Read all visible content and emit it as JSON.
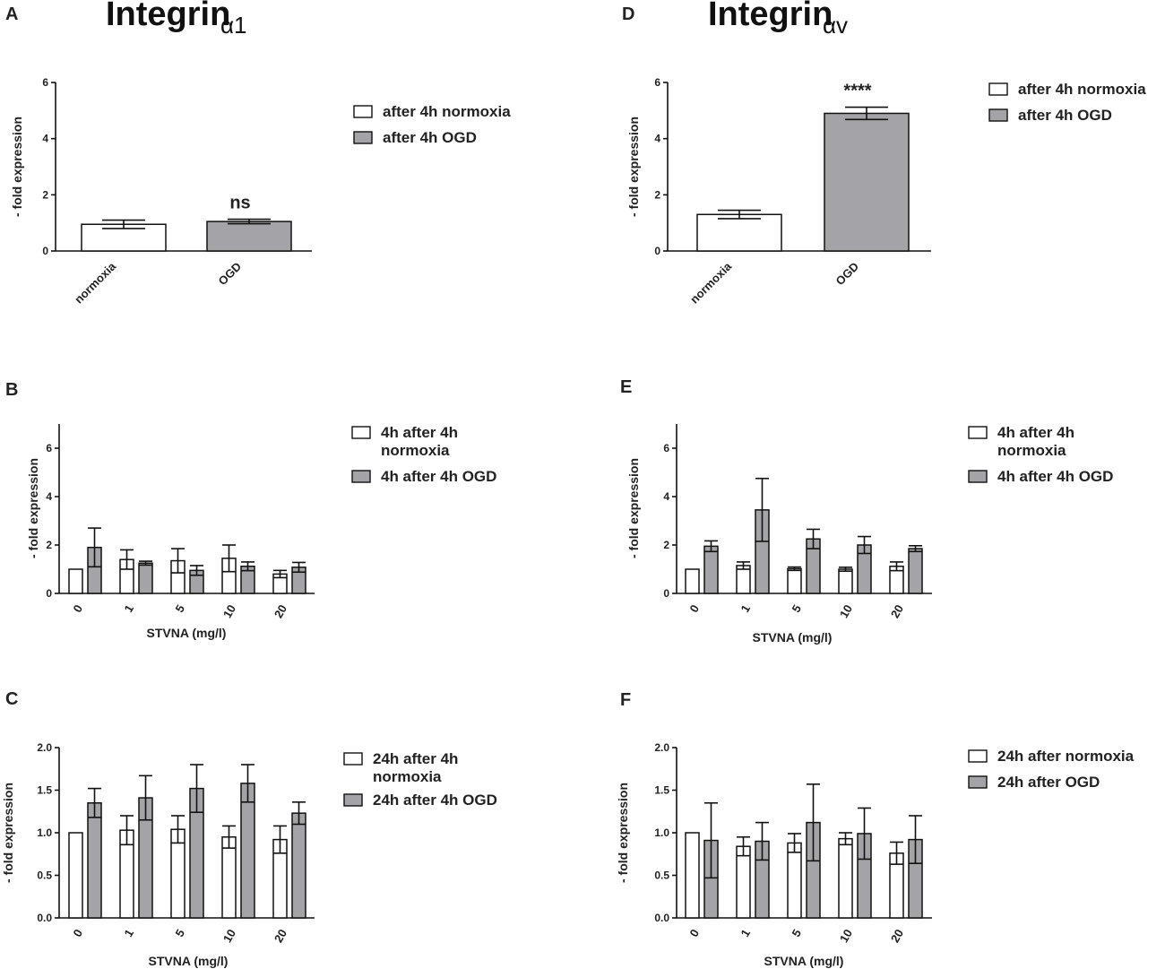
{
  "figure": {
    "title_left": {
      "main": "Integrin",
      "sub": "α1"
    },
    "title_right": {
      "main": "Integrin",
      "sub": "αv"
    }
  },
  "colors": {
    "white_bar": "#ffffff",
    "grey_bar": "#a4a4a8",
    "stroke": "#111111"
  },
  "chart_data": [
    {
      "id": "A",
      "panel_label": "A",
      "type": "bar",
      "ylabel": "- fold expression",
      "xlabel": "",
      "ylim": [
        0,
        6
      ],
      "yticks": [
        "0",
        "2",
        "4",
        "6"
      ],
      "ytick_values": [
        0,
        2,
        4,
        6
      ],
      "categories": [
        "normoxia",
        "OGD"
      ],
      "series": [
        {
          "name": "after 4h normoxia",
          "color": "#ffffff",
          "values": [
            0.95,
            null
          ],
          "errors": [
            0.15,
            null
          ]
        },
        {
          "name": "after 4h OGD",
          "color": "#a4a4a8",
          "values": [
            null,
            1.05
          ],
          "errors": [
            null,
            0.08
          ]
        }
      ],
      "annotation": "ns",
      "legend": [
        {
          "label": "after 4h normoxia",
          "color": "#ffffff"
        },
        {
          "label": "after 4h OGD",
          "color": "#a4a4a8"
        }
      ]
    },
    {
      "id": "D",
      "panel_label": "D",
      "type": "bar",
      "ylabel": "- fold expression",
      "xlabel": "",
      "ylim": [
        0,
        6
      ],
      "yticks": [
        "0",
        "2",
        "4",
        "6"
      ],
      "ytick_values": [
        0,
        2,
        4,
        6
      ],
      "categories": [
        "normoxia",
        "OGD"
      ],
      "series": [
        {
          "name": "after  4h normoxia",
          "color": "#ffffff",
          "values": [
            1.3,
            null
          ],
          "errors": [
            0.15,
            null
          ]
        },
        {
          "name": "after 4h OGD",
          "color": "#a4a4a8",
          "values": [
            null,
            4.9
          ],
          "errors": [
            null,
            0.22
          ]
        }
      ],
      "annotation": "****",
      "legend": [
        {
          "label": "after  4h normoxia",
          "color": "#ffffff"
        },
        {
          "label": "after 4h OGD",
          "color": "#a4a4a8"
        }
      ]
    },
    {
      "id": "B",
      "panel_label": "B",
      "type": "bar",
      "ylabel": "- fold expression",
      "xlabel": "STVNA (mg/l)",
      "ylim": [
        0,
        7
      ],
      "yticks": [
        "0",
        "2",
        "4",
        "6"
      ],
      "ytick_values": [
        0,
        2,
        4,
        6
      ],
      "categories": [
        "0",
        "1",
        "5",
        "10",
        "20"
      ],
      "series": [
        {
          "name": "4h after 4h normoxia",
          "color": "#ffffff",
          "values": [
            1.0,
            1.4,
            1.35,
            1.45,
            0.8
          ],
          "errors": [
            0,
            0.4,
            0.5,
            0.55,
            0.15
          ]
        },
        {
          "name": "4h after 4h OGD",
          "color": "#a4a4a8",
          "values": [
            1.9,
            1.25,
            0.95,
            1.12,
            1.08
          ],
          "errors": [
            0.8,
            0.08,
            0.2,
            0.18,
            0.2
          ]
        }
      ],
      "legend": [
        {
          "label": [
            "4h after 4h",
            "normoxia"
          ],
          "color": "#ffffff"
        },
        {
          "label": [
            "4h after 4h OGD"
          ],
          "color": "#a4a4a8"
        }
      ]
    },
    {
      "id": "E",
      "panel_label": "E",
      "type": "bar",
      "ylabel": "- fold expression",
      "xlabel": "STVNA (mg/l)",
      "ylim": [
        0,
        7
      ],
      "yticks": [
        "0",
        "2",
        "4",
        "6"
      ],
      "ytick_values": [
        0,
        2,
        4,
        6
      ],
      "categories": [
        "0",
        "1",
        "5",
        "10",
        "20"
      ],
      "series": [
        {
          "name": "4h after 4h normoxia",
          "color": "#ffffff",
          "values": [
            1.0,
            1.15,
            1.02,
            1.0,
            1.12
          ],
          "errors": [
            0,
            0.15,
            0.07,
            0.08,
            0.18
          ]
        },
        {
          "name": "4h after 4h OGD",
          "color": "#a4a4a8",
          "values": [
            1.95,
            3.45,
            2.25,
            2.0,
            1.85
          ],
          "errors": [
            0.22,
            1.3,
            0.4,
            0.35,
            0.12
          ]
        }
      ],
      "legend": [
        {
          "label": [
            "4h after 4h",
            "normoxia"
          ],
          "color": "#ffffff"
        },
        {
          "label": [
            "4h after 4h OGD"
          ],
          "color": "#a4a4a8"
        }
      ]
    },
    {
      "id": "C",
      "panel_label": "C",
      "type": "bar",
      "ylabel": "- fold expression",
      "xlabel": "STVNA (mg/l)",
      "ylim": [
        0,
        2.0
      ],
      "yticks": [
        "0.0",
        "0.5",
        "1.0",
        "1.5",
        "2.0"
      ],
      "ytick_values": [
        0,
        0.5,
        1.0,
        1.5,
        2.0
      ],
      "categories": [
        "0",
        "1",
        "5",
        "10",
        "20"
      ],
      "series": [
        {
          "name": "24h after 4h normoxia",
          "color": "#ffffff",
          "values": [
            1.0,
            1.03,
            1.04,
            0.95,
            0.92
          ],
          "errors": [
            0,
            0.17,
            0.16,
            0.13,
            0.16
          ]
        },
        {
          "name": "24h after 4h OGD",
          "color": "#a4a4a8",
          "values": [
            1.35,
            1.41,
            1.52,
            1.58,
            1.23
          ],
          "errors": [
            0.17,
            0.26,
            0.28,
            0.22,
            0.13
          ]
        }
      ],
      "legend": [
        {
          "label": [
            "24h after 4h",
            "normoxia"
          ],
          "color": "#ffffff"
        },
        {
          "label": [
            "24h after 4h OGD"
          ],
          "color": "#a4a4a8"
        }
      ]
    },
    {
      "id": "F",
      "panel_label": "F",
      "type": "bar",
      "ylabel": "- fold expression",
      "xlabel": "STVNA (mg/l)",
      "ylim": [
        0,
        2.0
      ],
      "yticks": [
        "0.0",
        "0.5",
        "1.0",
        "1.5",
        "2.0"
      ],
      "ytick_values": [
        0,
        0.5,
        1.0,
        1.5,
        2.0
      ],
      "categories": [
        "0",
        "1",
        "5",
        "10",
        "20"
      ],
      "series": [
        {
          "name": "24h after normoxia",
          "color": "#ffffff",
          "values": [
            1.0,
            0.84,
            0.88,
            0.93,
            0.76
          ],
          "errors": [
            0,
            0.11,
            0.11,
            0.07,
            0.13
          ]
        },
        {
          "name": "24h after OGD",
          "color": "#a4a4a8",
          "values": [
            0.91,
            0.9,
            1.12,
            0.99,
            0.92
          ],
          "errors": [
            0.44,
            0.22,
            0.45,
            0.3,
            0.28
          ]
        }
      ],
      "legend": [
        {
          "label": [
            "24h after normoxia"
          ],
          "color": "#ffffff"
        },
        {
          "label": [
            "24h after OGD"
          ],
          "color": "#a4a4a8"
        }
      ]
    }
  ]
}
